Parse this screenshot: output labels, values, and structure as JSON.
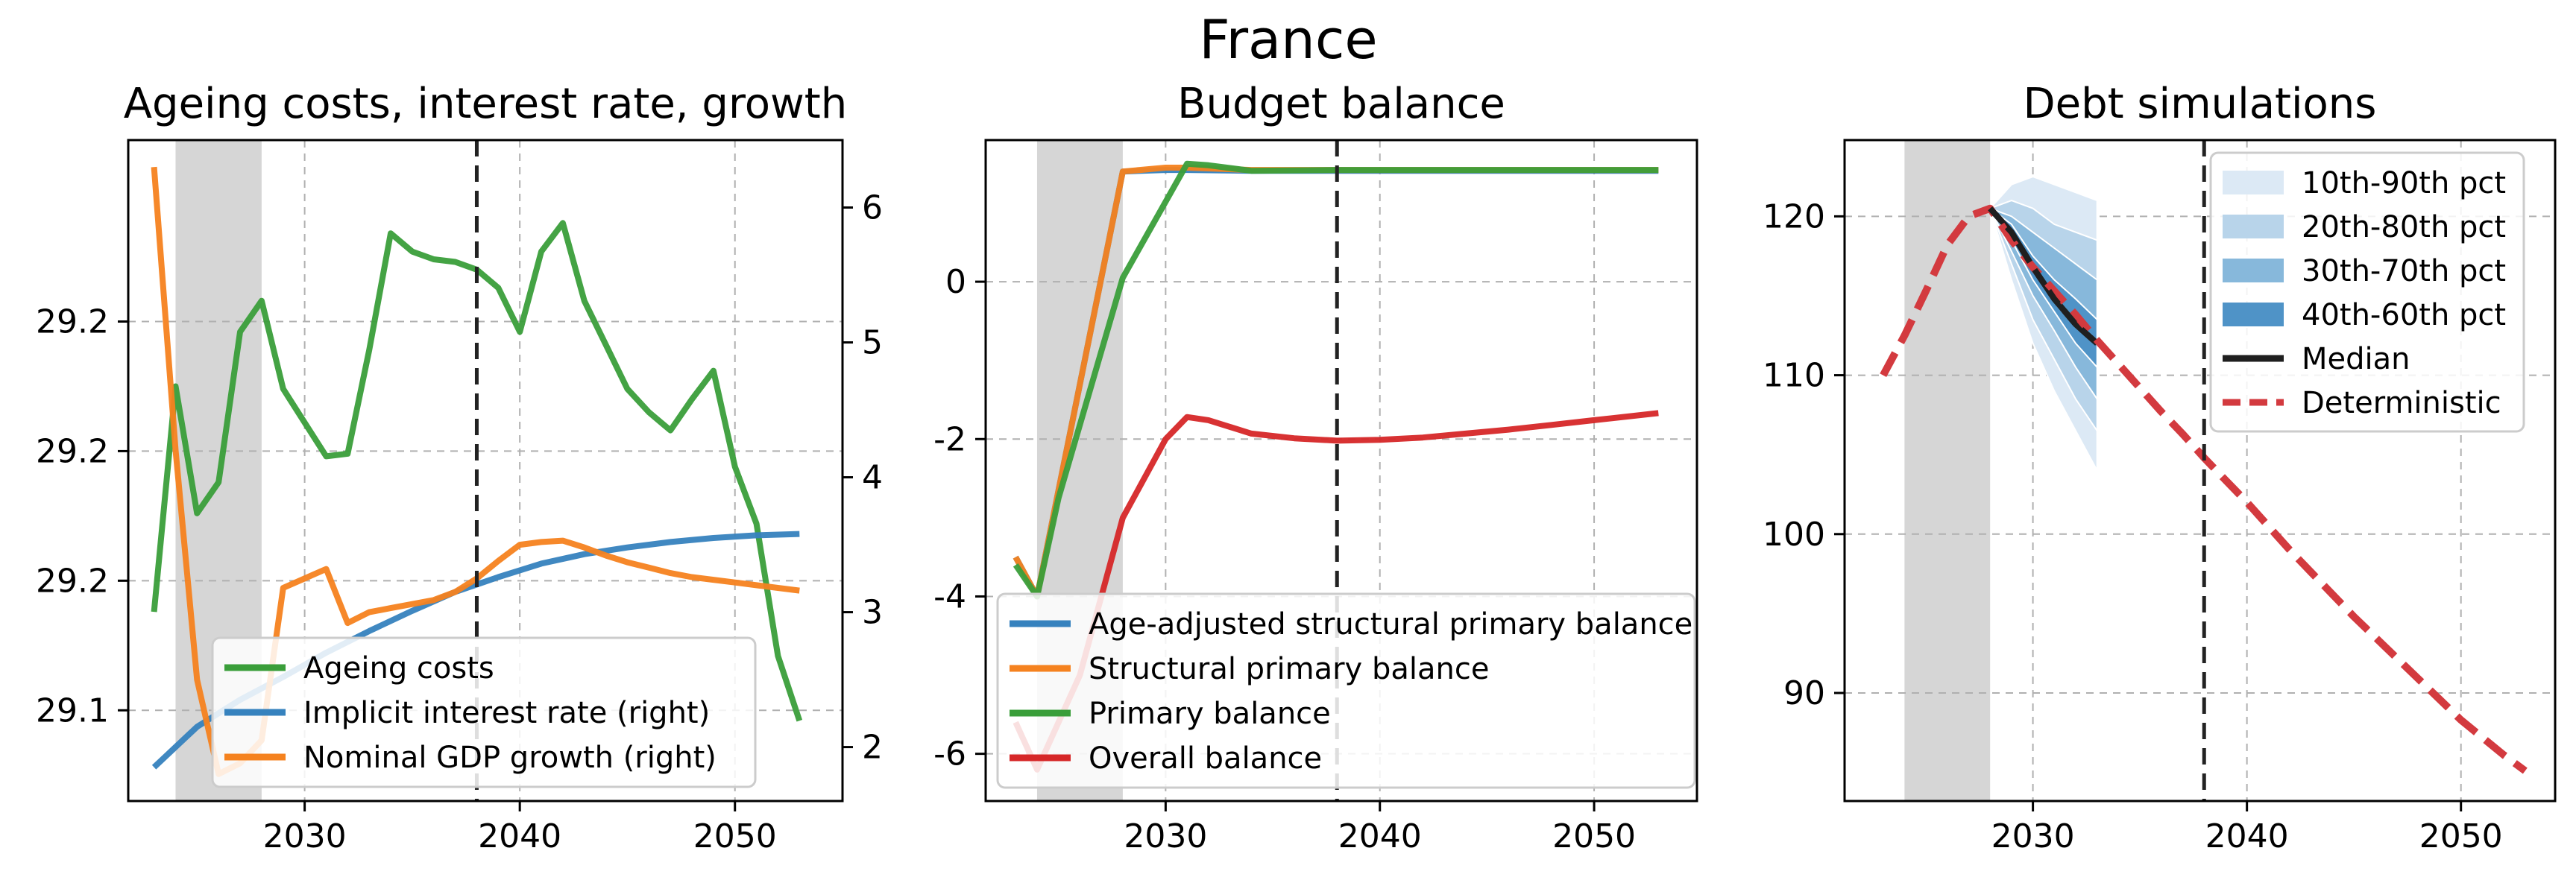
{
  "figure": {
    "title": "France"
  },
  "colors": {
    "green": "#3a9e3a",
    "orange": "#f5821f",
    "blue": "#3682be",
    "red": "#d62728",
    "median": "#1f1f1f",
    "deterministic": "#d33a3f",
    "shade": "#d6d6d6",
    "fan_10_90": "#dce9f5",
    "fan_20_80": "#b8d4ea",
    "fan_30_70": "#87b8db",
    "fan_40_60": "#4f93c7"
  },
  "chart_data": [
    {
      "type": "line",
      "title": "Ageing costs, interest rate, growth",
      "xlabel": "",
      "ylabel": "",
      "xlim": [
        2021.8,
        2055
      ],
      "xticks": [
        2030,
        2040,
        2050
      ],
      "ylim_left": [
        29.065,
        29.32
      ],
      "yticks_left": [
        {
          "value": 29.1,
          "label": "29.1"
        },
        {
          "value": 29.15,
          "label": "29.2"
        },
        {
          "value": 29.2,
          "label": "29.2"
        },
        {
          "value": 29.25,
          "label": "29.2"
        }
      ],
      "ylim_right": [
        1.6,
        6.5
      ],
      "yticks_right": [
        2,
        3,
        4,
        5,
        6
      ],
      "grid": true,
      "shaded_region": [
        2024,
        2028
      ],
      "vline": 2038,
      "legend_position": "lower center",
      "series": [
        {
          "name": "Ageing costs",
          "axis": "left",
          "color": "green",
          "x": [
            2023,
            2024,
            2025,
            2026,
            2027,
            2028,
            2029,
            2030,
            2031,
            2032,
            2033,
            2034,
            2035,
            2036,
            2037,
            2038,
            2039,
            2040,
            2041,
            2042,
            2043,
            2044,
            2045,
            2046,
            2047,
            2048,
            2049,
            2050,
            2051,
            2052,
            2053
          ],
          "values": [
            29.138,
            29.225,
            29.176,
            29.188,
            29.246,
            29.258,
            29.224,
            29.211,
            29.198,
            29.199,
            29.239,
            29.284,
            29.277,
            29.274,
            29.273,
            29.27,
            29.263,
            29.246,
            29.277,
            29.288,
            29.258,
            29.241,
            29.224,
            29.215,
            29.208,
            29.22,
            29.231,
            29.194,
            29.172,
            29.121,
            29.096
          ]
        },
        {
          "name": "Implicit interest rate (right)",
          "axis": "right",
          "color": "blue",
          "x": [
            2023,
            2025,
            2027,
            2029,
            2031,
            2033,
            2035,
            2037,
            2039,
            2041,
            2043,
            2045,
            2047,
            2049,
            2051,
            2053
          ],
          "values": [
            1.85,
            2.15,
            2.35,
            2.52,
            2.7,
            2.86,
            3.01,
            3.15,
            3.26,
            3.36,
            3.43,
            3.48,
            3.52,
            3.55,
            3.57,
            3.58
          ]
        },
        {
          "name": "Nominal GDP growth (right)",
          "axis": "right",
          "color": "orange",
          "x": [
            2023,
            2024,
            2025,
            2026,
            2027,
            2028,
            2029,
            2030,
            2031,
            2032,
            2033,
            2034,
            2035,
            2036,
            2037,
            2038,
            2039,
            2040,
            2041,
            2042,
            2043,
            2044,
            2045,
            2046,
            2047,
            2048,
            2049,
            2050,
            2051,
            2052,
            2053
          ],
          "values": [
            6.3,
            4.2,
            2.5,
            1.8,
            1.88,
            2.05,
            3.18,
            3.25,
            3.32,
            2.92,
            3.0,
            3.03,
            3.06,
            3.09,
            3.15,
            3.25,
            3.38,
            3.5,
            3.52,
            3.53,
            3.48,
            3.42,
            3.37,
            3.33,
            3.29,
            3.26,
            3.24,
            3.22,
            3.2,
            3.18,
            3.16
          ]
        }
      ]
    },
    {
      "type": "line",
      "title": "Budget balance",
      "xlabel": "",
      "ylabel": "",
      "xlim": [
        2021.6,
        2054.8
      ],
      "xticks": [
        2030,
        2040,
        2050
      ],
      "ylim": [
        -6.6,
        1.8
      ],
      "yticks": [
        0,
        -2,
        -4,
        -6
      ],
      "grid": true,
      "shaded_region": [
        2024,
        2028
      ],
      "vline": 2038,
      "legend_position": "lower center",
      "series": [
        {
          "name": "Age-adjusted structural primary balance",
          "color": "blue",
          "x": [
            2023,
            2024,
            2028,
            2030,
            2031,
            2034,
            2038,
            2053
          ],
          "values": [
            -3.5,
            -4.0,
            1.4,
            1.42,
            1.42,
            1.41,
            1.41,
            1.41
          ]
        },
        {
          "name": "Structural primary balance",
          "color": "orange",
          "x": [
            2023,
            2024,
            2028,
            2030,
            2031,
            2034,
            2038,
            2053
          ],
          "values": [
            -3.5,
            -4.0,
            1.4,
            1.45,
            1.45,
            1.42,
            1.42,
            1.42
          ]
        },
        {
          "name": "Primary balance",
          "color": "green",
          "x": [
            2023,
            2024,
            2025,
            2028,
            2031,
            2032,
            2034,
            2038,
            2053
          ],
          "values": [
            -3.6,
            -4.0,
            -2.75,
            0.05,
            1.5,
            1.48,
            1.41,
            1.42,
            1.42
          ]
        },
        {
          "name": "Overall balance",
          "color": "red",
          "x": [
            2023,
            2024,
            2026,
            2028,
            2030,
            2031,
            2032,
            2034,
            2036,
            2038,
            2040,
            2042,
            2044,
            2046,
            2048,
            2050,
            2053
          ],
          "values": [
            -5.6,
            -6.2,
            -5.0,
            -3.0,
            -2.0,
            -1.72,
            -1.76,
            -1.93,
            -1.99,
            -2.02,
            -2.01,
            -1.98,
            -1.93,
            -1.88,
            -1.82,
            -1.76,
            -1.67
          ]
        }
      ]
    },
    {
      "type": "area",
      "title": "Debt simulations",
      "xlabel": "",
      "ylabel": "",
      "xlim": [
        2021.2,
        2054.4
      ],
      "xticks": [
        2030,
        2040,
        2050
      ],
      "ylim": [
        83.2,
        124.8
      ],
      "yticks": [
        90,
        100,
        110,
        120
      ],
      "grid": true,
      "shaded_region": [
        2024,
        2028
      ],
      "vline": 2038,
      "legend_position": "upper right",
      "fan_x": [
        2028,
        2029,
        2030,
        2031,
        2032,
        2033
      ],
      "series": [
        {
          "name": "10th-90th pct",
          "color": "fan_10_90",
          "lower": [
            120.5,
            116.0,
            112.0,
            109.0,
            106.5,
            104.0
          ],
          "upper": [
            120.5,
            122.0,
            122.5,
            122.0,
            121.5,
            121.0
          ]
        },
        {
          "name": "20th-80th pct",
          "color": "fan_20_80",
          "lower": [
            120.5,
            117.0,
            113.5,
            111.0,
            108.5,
            106.5
          ],
          "upper": [
            120.5,
            121.0,
            120.5,
            119.5,
            119.0,
            118.5
          ]
        },
        {
          "name": "30th-70th pct",
          "color": "fan_30_70",
          "lower": [
            120.5,
            117.8,
            115.0,
            112.8,
            110.5,
            108.5
          ],
          "upper": [
            120.5,
            120.0,
            119.0,
            118.0,
            117.0,
            116.0
          ]
        },
        {
          "name": "40th-60th pct",
          "color": "fan_40_60",
          "lower": [
            120.5,
            118.5,
            116.0,
            114.0,
            112.0,
            110.5
          ],
          "upper": [
            120.5,
            119.5,
            117.5,
            116.0,
            114.8,
            113.5
          ]
        },
        {
          "name": "Median",
          "color": "median",
          "x": [
            2028,
            2029,
            2030,
            2031,
            2032,
            2033
          ],
          "values": [
            120.5,
            119.0,
            116.8,
            114.8,
            113.2,
            112.0
          ]
        },
        {
          "name": "Deterministic",
          "color": "deterministic",
          "dashed": true,
          "x": [
            2023,
            2024,
            2025,
            2026,
            2027,
            2028,
            2029,
            2030,
            2031,
            2032,
            2033,
            2034,
            2035,
            2036,
            2037,
            2038,
            2039,
            2040,
            2041,
            2042,
            2043,
            2044,
            2045,
            2046,
            2047,
            2048,
            2049,
            2050,
            2051,
            2052,
            2053
          ],
          "values": [
            110.0,
            112.5,
            115.3,
            118.2,
            120.0,
            120.5,
            118.5,
            116.8,
            115.3,
            113.8,
            112.2,
            110.7,
            109.2,
            107.7,
            106.3,
            104.8,
            103.4,
            102.0,
            100.5,
            99.0,
            97.6,
            96.2,
            94.8,
            93.5,
            92.2,
            90.9,
            89.6,
            88.3,
            87.2,
            86.1,
            85.1
          ]
        }
      ]
    }
  ]
}
